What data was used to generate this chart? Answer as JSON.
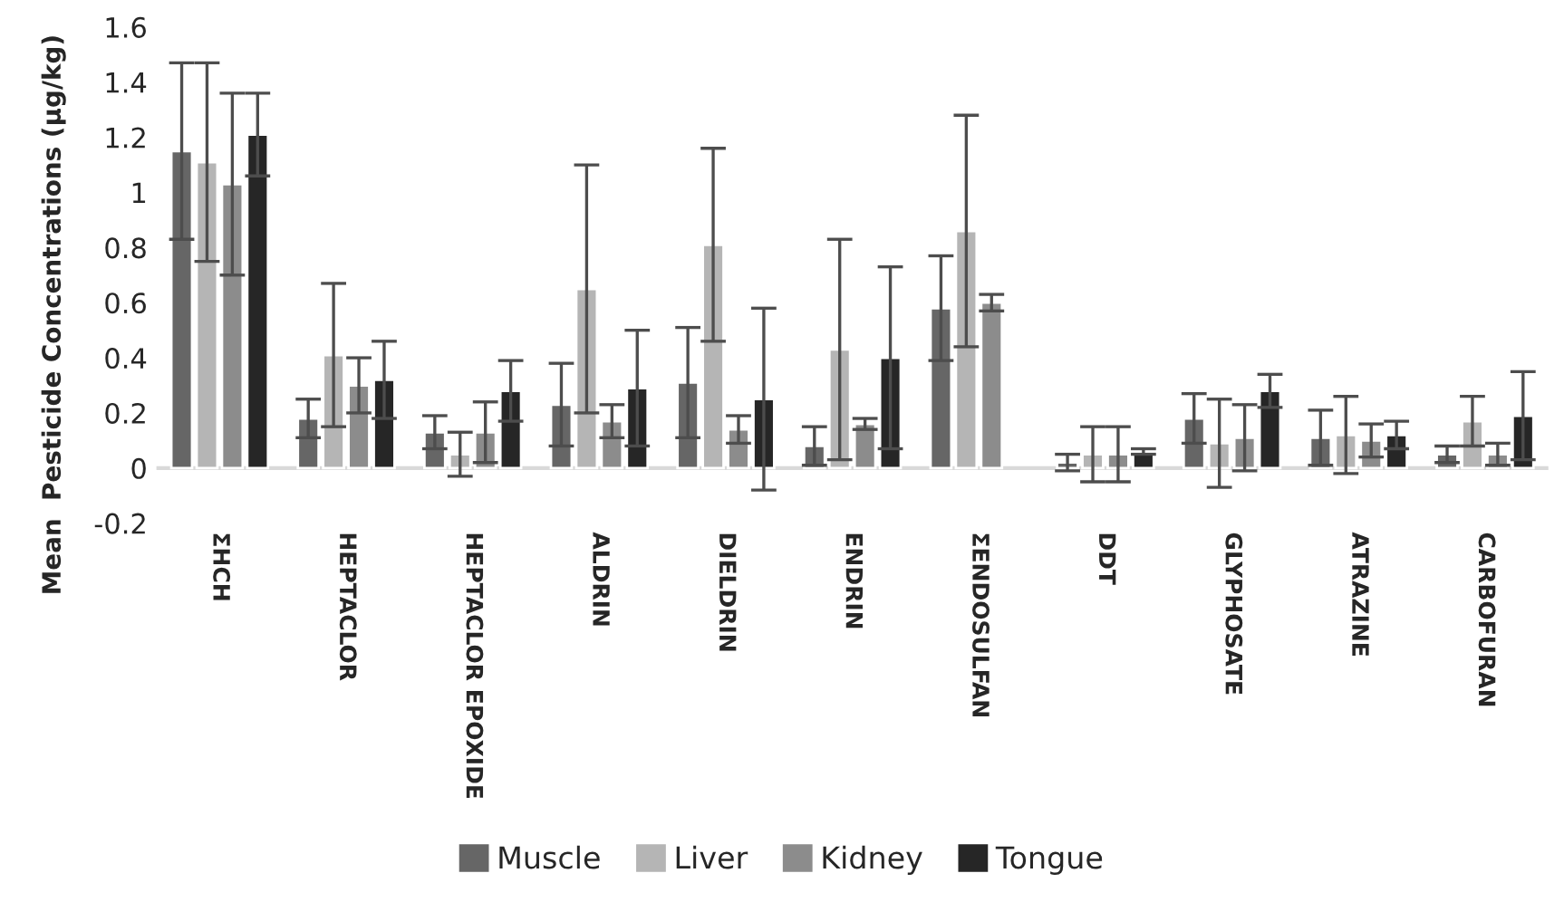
{
  "chart_data": {
    "type": "bar",
    "ylabel": "Mean  Pesticide Concentrations (µg/kg)",
    "categories": [
      "ΣHCH",
      "HEPTACLOR",
      "HEPTACLOR EPOXIDE",
      "ALDRIN",
      "DIELDRIN",
      "ENDRIN",
      "ΣENDOSULFAN",
      "DDT",
      "GLYPHOSATE",
      "ATRAZINE",
      "CARBOFURAN"
    ],
    "series": [
      {
        "name": "Muscle",
        "color": "#666666",
        "values": [
          1.15,
          0.18,
          0.13,
          0.23,
          0.31,
          0.08,
          0.58,
          0.02,
          0.18,
          0.11,
          0.05
        ],
        "errors": [
          0.32,
          0.07,
          0.06,
          0.15,
          0.2,
          0.07,
          0.19,
          0.03,
          0.09,
          0.1,
          0.03
        ]
      },
      {
        "name": "Liver",
        "color": "#b5b5b5",
        "values": [
          1.11,
          0.41,
          0.05,
          0.65,
          0.81,
          0.43,
          0.86,
          0.05,
          0.09,
          0.12,
          0.17
        ],
        "errors": [
          0.36,
          0.26,
          0.08,
          0.45,
          0.35,
          0.4,
          0.42,
          0.1,
          0.16,
          0.14,
          0.09
        ]
      },
      {
        "name": "Kidney",
        "color": "#8c8c8c",
        "values": [
          1.03,
          0.3,
          0.13,
          0.17,
          0.14,
          0.16,
          0.6,
          0.05,
          0.11,
          0.1,
          0.05
        ],
        "errors": [
          0.33,
          0.1,
          0.11,
          0.06,
          0.05,
          0.02,
          0.03,
          0.1,
          0.12,
          0.06,
          0.04
        ]
      },
      {
        "name": "Tongue",
        "color": "#262626",
        "values": [
          1.21,
          0.32,
          0.28,
          0.29,
          0.25,
          0.4,
          null,
          0.06,
          0.28,
          0.12,
          0.19
        ],
        "errors": [
          0.15,
          0.14,
          0.11,
          0.21,
          0.33,
          0.33,
          null,
          0.01,
          0.06,
          0.05,
          0.16
        ]
      }
    ],
    "ref_lines": [
      {
        "axis": "y",
        "value": 0,
        "color": "#d9d9d9"
      }
    ],
    "ylim": [
      -0.2,
      1.6
    ],
    "yticks": [
      -0.2,
      0,
      0.2,
      0.4,
      0.6,
      0.8,
      1,
      1.2,
      1.4,
      1.6
    ],
    "grid": false,
    "legend": "bottom"
  }
}
